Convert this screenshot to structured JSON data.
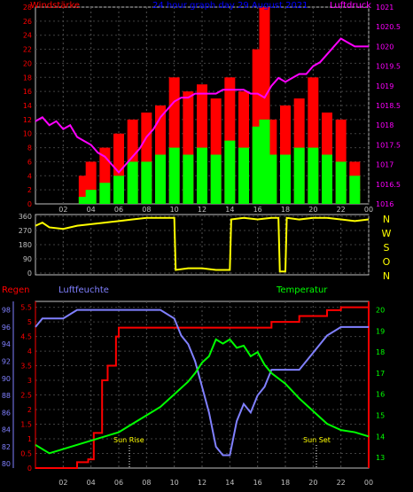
{
  "chart_data": [
    {
      "type": "bar",
      "title": "24 hour graph day  29 August 2021",
      "ylabel_left": "Windstärke",
      "ylabel_right": "Luftdruck",
      "x_ticks": [
        "02",
        "04",
        "06",
        "08",
        "10",
        "12",
        "14",
        "16",
        "18",
        "20",
        "22",
        "00"
      ],
      "y_left_ticks": [
        0,
        2,
        4,
        6,
        8,
        10,
        12,
        14,
        16,
        18,
        20,
        22,
        24,
        26,
        28
      ],
      "y_right_ticks": [
        1016,
        1016.5,
        1017,
        1017.5,
        1018,
        1018.5,
        1019,
        1019.5,
        1020,
        1020.5,
        1021
      ],
      "ylim_left": [
        0,
        28
      ],
      "ylim_right": [
        1016,
        1021
      ],
      "series": [
        {
          "name": "Windstärke",
          "kind": "bars",
          "color": "#ff0000",
          "x": [
            3.5,
            4.0,
            5.0,
            6.0,
            7.0,
            8.0,
            9.0,
            10.0,
            11.0,
            12.0,
            13.0,
            14.0,
            15.0,
            16.0,
            16.5,
            17.0,
            18.0,
            19.0,
            20.0,
            21.0,
            22.0,
            23.0
          ],
          "values": [
            4,
            6,
            8,
            10,
            12,
            13,
            14,
            18,
            16,
            17,
            15,
            18,
            16,
            22,
            28,
            12,
            14,
            15,
            18,
            13,
            12,
            6
          ]
        },
        {
          "name": "gust-mean",
          "kind": "bars",
          "color": "#00ff00",
          "x": [
            3.5,
            4.0,
            5.0,
            6.0,
            7.0,
            8.0,
            9.0,
            10.0,
            11.0,
            12.0,
            13.0,
            14.0,
            15.0,
            16.0,
            16.5,
            17.0,
            18.0,
            19.0,
            20.0,
            21.0,
            22.0,
            23.0
          ],
          "values": [
            1,
            2,
            3,
            4,
            6,
            6,
            7,
            8,
            7,
            8,
            7,
            9,
            8,
            11,
            12,
            7,
            7,
            8,
            8,
            7,
            6,
            4
          ]
        },
        {
          "name": "Luftdruck",
          "kind": "line",
          "color": "#ff00ff",
          "axis": "right",
          "x": [
            0,
            0.5,
            1,
            1.5,
            2,
            2.5,
            3,
            3.5,
            4,
            4.5,
            5,
            5.5,
            6,
            6.5,
            7,
            7.5,
            8,
            8.5,
            9,
            9.5,
            10,
            10.5,
            11,
            11.5,
            12,
            12.5,
            13,
            13.5,
            14,
            14.5,
            15,
            15.5,
            16,
            16.5,
            17,
            17.5,
            18,
            18.5,
            19,
            19.5,
            20,
            20.5,
            21,
            21.5,
            22,
            22.5,
            23,
            23.5,
            24
          ],
          "values": [
            1018.1,
            1018.2,
            1018.0,
            1018.1,
            1017.9,
            1018.0,
            1017.7,
            1017.6,
            1017.5,
            1017.3,
            1017.2,
            1017.0,
            1016.8,
            1017.0,
            1017.2,
            1017.4,
            1017.7,
            1017.9,
            1018.2,
            1018.4,
            1018.6,
            1018.7,
            1018.7,
            1018.8,
            1018.8,
            1018.8,
            1018.8,
            1018.9,
            1018.9,
            1018.9,
            1018.9,
            1018.8,
            1018.8,
            1018.7,
            1019.0,
            1019.2,
            1019.1,
            1019.2,
            1019.3,
            1019.3,
            1019.5,
            1019.6,
            1019.8,
            1020.0,
            1020.2,
            1020.1,
            1020.0,
            1020.0,
            1020.0
          ]
        }
      ]
    },
    {
      "type": "line",
      "title": "",
      "ylabel_right_letters": [
        "N",
        "W",
        "S",
        "O",
        "N"
      ],
      "y_ticks": [
        0,
        90,
        180,
        270,
        360
      ],
      "ylim": [
        0,
        360
      ],
      "x_ticks": [
        "02",
        "04",
        "06",
        "08",
        "10",
        "12",
        "14",
        "16",
        "18",
        "20",
        "22",
        "00"
      ],
      "series": [
        {
          "name": "Windrichtung",
          "color": "#ffff00",
          "x": [
            0,
            0.5,
            1,
            2,
            3,
            4,
            5,
            6,
            7,
            8,
            9,
            10,
            10.1,
            11,
            12,
            13,
            14,
            14.1,
            15,
            16,
            17,
            17.5,
            17.6,
            18,
            18.1,
            19,
            20,
            21,
            22,
            23,
            24
          ],
          "values": [
            300,
            320,
            290,
            280,
            300,
            310,
            320,
            330,
            340,
            350,
            350,
            350,
            20,
            30,
            30,
            20,
            20,
            340,
            350,
            340,
            350,
            350,
            10,
            10,
            350,
            340,
            350,
            350,
            340,
            330,
            340
          ]
        }
      ]
    },
    {
      "type": "line",
      "title": "",
      "ylabel_left_outer": "Regen",
      "ylabel_left_inner": "Luftfeuchte",
      "ylabel_right": "Temperatur",
      "y_rain_ticks": [
        0,
        0.5,
        1,
        1.5,
        2,
        2.5,
        3,
        3.5,
        4,
        4.5,
        5,
        5.5
      ],
      "y_hum_ticks": [
        80,
        82,
        84,
        86,
        88,
        90,
        92,
        94,
        96,
        98
      ],
      "y_temp_ticks": [
        13,
        14,
        15,
        16,
        17,
        18,
        19,
        20
      ],
      "ylim_rain": [
        0,
        5.7
      ],
      "ylim_hum": [
        79.5,
        99
      ],
      "ylim_temp": [
        12.5,
        20.4
      ],
      "x_ticks": [
        "02",
        "04",
        "06",
        "08",
        "10",
        "12",
        "14",
        "16",
        "18",
        "20",
        "22",
        "00"
      ],
      "annotations": [
        "Sun Rise",
        "Sun Set"
      ],
      "series": [
        {
          "name": "Regen",
          "color": "#ff0000",
          "x": [
            0,
            2,
            3,
            3.8,
            4.2,
            4.8,
            5.2,
            5.8,
            6,
            7,
            8,
            9,
            10,
            11,
            12,
            13,
            14,
            15,
            16,
            17,
            18,
            19,
            20,
            21,
            22,
            23,
            24
          ],
          "values": [
            0,
            0,
            0.2,
            0.3,
            1.2,
            3.0,
            3.5,
            4.5,
            4.8,
            4.8,
            4.8,
            4.8,
            4.8,
            4.8,
            4.8,
            4.8,
            4.8,
            4.8,
            4.8,
            5.0,
            5.0,
            5.2,
            5.2,
            5.4,
            5.5,
            5.5,
            5.5
          ]
        },
        {
          "name": "Luftfeuchte",
          "color": "#8080ff",
          "x": [
            0,
            0.5,
            1,
            2,
            3,
            4,
            5,
            6,
            7,
            8,
            9,
            10,
            10.5,
            11,
            11.5,
            12,
            12.5,
            13,
            13.5,
            14,
            14.5,
            15,
            15.5,
            16,
            16.5,
            17,
            17.5,
            18,
            19,
            20,
            21,
            22,
            23,
            24
          ],
          "values": [
            96,
            97,
            97,
            97,
            98,
            98,
            98,
            98,
            98,
            98,
            98,
            97,
            95,
            94,
            92,
            89,
            86,
            82,
            81,
            81,
            85,
            87,
            86,
            88,
            89,
            91,
            91,
            91,
            91,
            93,
            95,
            96,
            96,
            96
          ]
        },
        {
          "name": "Temperatur",
          "color": "#00ff00",
          "x": [
            0,
            1,
            2,
            3,
            4,
            5,
            6,
            7,
            8,
            9,
            10,
            11,
            11.5,
            12,
            12.5,
            13,
            13.5,
            14,
            14.5,
            15,
            15.5,
            16,
            16.5,
            17,
            18,
            19,
            20,
            21,
            22,
            23,
            24
          ],
          "values": [
            13.6,
            13.2,
            13.4,
            13.6,
            13.8,
            14.0,
            14.2,
            14.6,
            15.0,
            15.4,
            16.0,
            16.6,
            17.0,
            17.5,
            17.8,
            18.6,
            18.4,
            18.6,
            18.2,
            18.3,
            17.8,
            18.0,
            17.4,
            17.0,
            16.5,
            15.8,
            15.2,
            14.6,
            14.3,
            14.2,
            14.0
          ]
        }
      ]
    }
  ]
}
